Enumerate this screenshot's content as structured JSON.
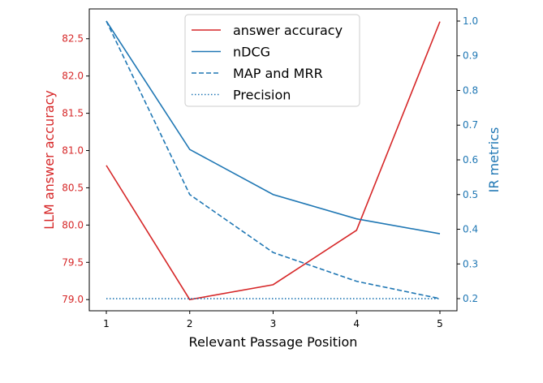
{
  "chart_data": {
    "type": "line",
    "x": [
      1,
      2,
      3,
      4,
      5
    ],
    "xlabel": "Relevant Passage Position",
    "xticks": [
      "1",
      "2",
      "3",
      "4",
      "5"
    ],
    "left_axis": {
      "label": "LLM answer accuracy",
      "color": "#d62728",
      "ylim": [
        78.85,
        82.9
      ],
      "ticks": [
        "79.0",
        "79.5",
        "80.0",
        "80.5",
        "81.0",
        "81.5",
        "82.0",
        "82.5"
      ],
      "tick_values": [
        79.0,
        79.5,
        80.0,
        80.5,
        81.0,
        81.5,
        82.0,
        82.5
      ]
    },
    "right_axis": {
      "label": "IR metrics",
      "color": "#1f77b4",
      "ylim": [
        0.165,
        1.035
      ],
      "ticks": [
        "0.2",
        "0.3",
        "0.4",
        "0.5",
        "0.6",
        "0.7",
        "0.8",
        "0.9",
        "1.0"
      ],
      "tick_values": [
        0.2,
        0.3,
        0.4,
        0.5,
        0.6,
        0.7,
        0.8,
        0.9,
        1.0
      ]
    },
    "series": [
      {
        "name": "answer accuracy",
        "axis": "left",
        "color": "#d62728",
        "style": "solid",
        "values": [
          80.8,
          79.0,
          79.2,
          79.93,
          82.73
        ]
      },
      {
        "name": "nDCG",
        "axis": "right",
        "color": "#1f77b4",
        "style": "solid",
        "values": [
          1.0,
          0.63,
          0.5,
          0.43,
          0.387
        ]
      },
      {
        "name": "MAP and MRR",
        "axis": "right",
        "color": "#1f77b4",
        "style": "dashed",
        "values": [
          1.0,
          0.5,
          0.333,
          0.25,
          0.2
        ]
      },
      {
        "name": "Precision",
        "axis": "right",
        "color": "#1f77b4",
        "style": "dotted",
        "values": [
          0.2,
          0.2,
          0.2,
          0.2,
          0.2
        ]
      }
    ],
    "legend_position": "top-center",
    "grid": false
  }
}
